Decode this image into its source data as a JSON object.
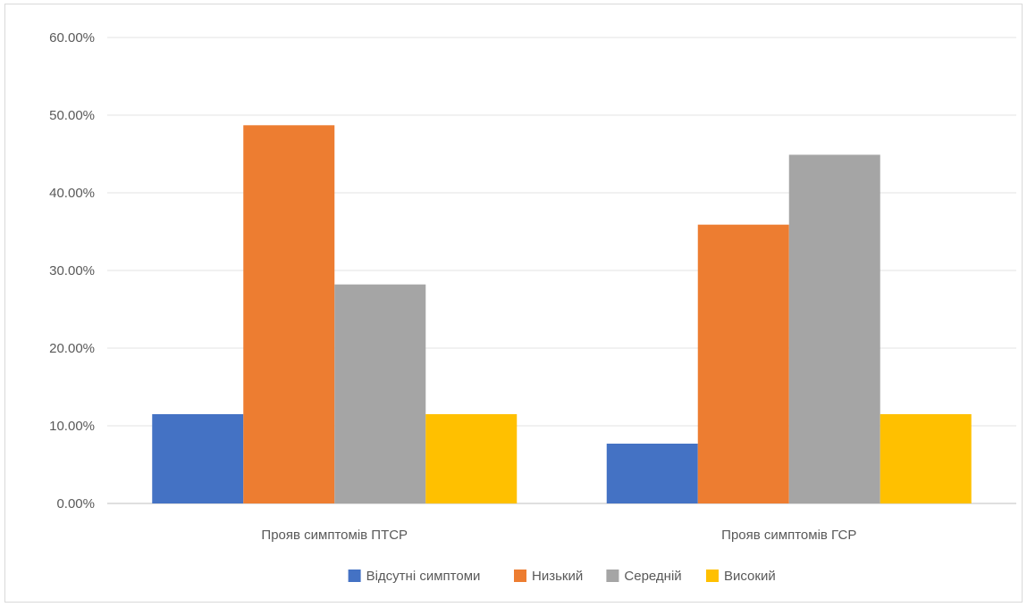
{
  "chart_data": {
    "type": "bar",
    "title": "",
    "xlabel": "",
    "ylabel": "",
    "ylim": [
      0,
      60
    ],
    "y_ticks": [
      "0.00%",
      "10.00%",
      "20.00%",
      "30.00%",
      "40.00%",
      "50.00%",
      "60.00%"
    ],
    "categories": [
      "Прояв симптомів ПТСР",
      "Прояв симптомів ГСР"
    ],
    "series": [
      {
        "name": "Відсутні симптоми",
        "color": "#4472c4",
        "values": [
          11.5,
          7.7
        ]
      },
      {
        "name": "Низький",
        "color": "#ed7d31",
        "values": [
          48.7,
          35.9
        ]
      },
      {
        "name": "Середній",
        "color": "#a5a5a5",
        "values": [
          28.2,
          44.9
        ]
      },
      {
        "name": "Високий",
        "color": "#ffc000",
        "values": [
          11.5,
          11.5
        ]
      }
    ],
    "grid": true,
    "legend_position": "bottom"
  }
}
